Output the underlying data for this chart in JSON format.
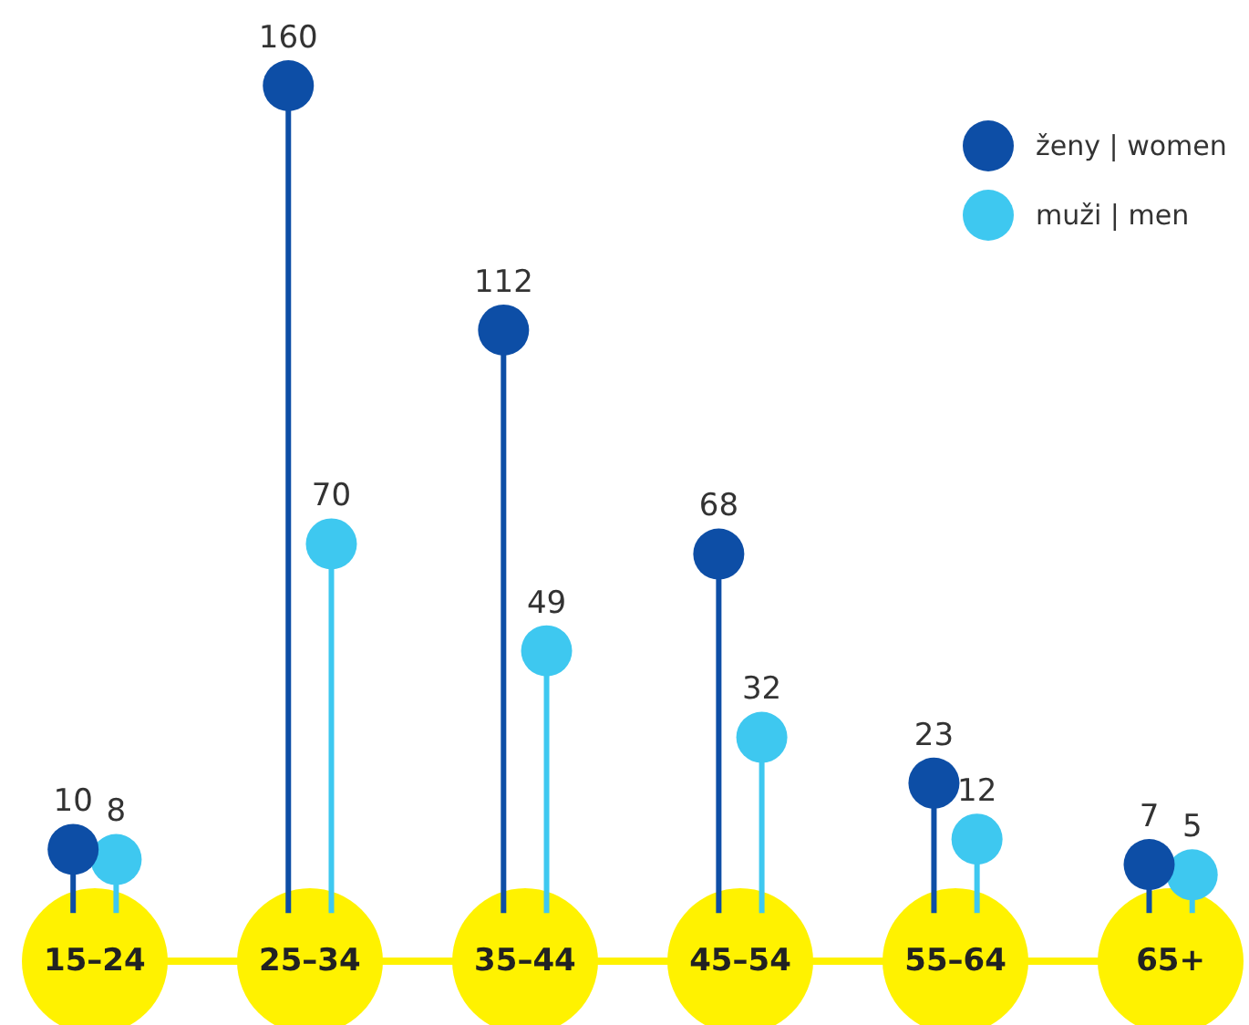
{
  "chart_data": {
    "type": "lollipop",
    "categories": [
      "15–24",
      "25–34",
      "35–44",
      "45–54",
      "55–64",
      "65+"
    ],
    "series": [
      {
        "name": "ženy | women",
        "color": "#0d4ea6",
        "values": [
          10,
          160,
          112,
          68,
          23,
          7
        ]
      },
      {
        "name": "muži | men",
        "color": "#3ec8f0",
        "values": [
          8,
          70,
          49,
          32,
          12,
          5
        ]
      }
    ],
    "data_labels": true,
    "legend": "top right",
    "marker": "circle"
  }
}
